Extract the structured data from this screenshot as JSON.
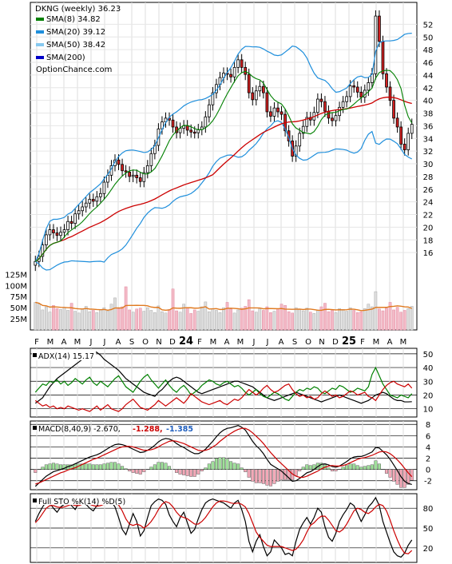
{
  "chart_data": [
    {
      "type": "candlestick",
      "panel": "price",
      "title": "DKNG (weekly) 36.23",
      "legend": [
        {
          "label": "SMA(8) 34.82",
          "color": "#008000"
        },
        {
          "label": "SMA(20) 39.12",
          "color": "#1f8fdc"
        },
        {
          "label": "SMA(50) 38.42",
          "color": "#87c9f0"
        },
        {
          "label": "SMA(200)",
          "color": "#0000c8"
        }
      ],
      "watermark": "OptionChance.com",
      "legend_position": "top-left",
      "price_ticks": [
        16,
        18,
        20,
        22,
        24,
        26,
        28,
        30,
        32,
        34,
        36,
        38,
        40,
        42,
        44,
        46,
        48,
        50,
        52
      ],
      "ylim": [
        13.7,
        53.5
      ],
      "volume_ticks": [
        "25M",
        "50M",
        "75M",
        "100M",
        "125M"
      ],
      "volume_tick_values": [
        25,
        50,
        75,
        100,
        125
      ],
      "volume_ylim": [
        0,
        140
      ],
      "x_labels": [
        "F",
        "M",
        "A",
        "M",
        "J",
        "J",
        "A",
        "S",
        "O",
        "N",
        "D",
        "24",
        "F",
        "M",
        "A",
        "M",
        "J",
        "J",
        "A",
        "S",
        "O",
        "N",
        "D",
        "25",
        "F",
        "M",
        "A",
        "M"
      ],
      "weekly_close": [
        14.6,
        15.4,
        17.2,
        18.8,
        19.6,
        19.1,
        18.7,
        19.2,
        19.6,
        20.9,
        20.6,
        22.1,
        22.6,
        23.2,
        23.8,
        24.4,
        24.1,
        24.8,
        25.3,
        27.1,
        28.2,
        29.7,
        30.6,
        29.9,
        28.9,
        28.7,
        28.0,
        28.2,
        27.8,
        27.2,
        28.6,
        29.7,
        31.6,
        32.9,
        35.5,
        36.6,
        37.2,
        36.9,
        35.8,
        34.9,
        35.6,
        36.0,
        35.3,
        35.0,
        34.9,
        35.4,
        35.8,
        37.4,
        39.3,
        41.2,
        42.5,
        43.6,
        44.3,
        44.1,
        43.7,
        45.2,
        46.4,
        45.2,
        44.1,
        41.2,
        40.1,
        41.5,
        42.2,
        41.2,
        38.2,
        37.5,
        38.8,
        38.2,
        37.8,
        35.2,
        33.6,
        31.2,
        32.8,
        34.8,
        35.9,
        37.3,
        36.9,
        38.1,
        40.2,
        39.8,
        38.3,
        37.2,
        36.8,
        37.6,
        38.9,
        39.8,
        40.6,
        42.3,
        42.1,
        41.3,
        40.5,
        41.6,
        42.8,
        44.2,
        53.3,
        49.3,
        44.2,
        42.1,
        40.0,
        37.2,
        35.8,
        33.1,
        32.2,
        34.8,
        36.23
      ],
      "weekly_volume": [
        62,
        58,
        45,
        52,
        40,
        55,
        48,
        46,
        50,
        44,
        60,
        42,
        38,
        47,
        53,
        41,
        44,
        39,
        46,
        50,
        43,
        58,
        72,
        48,
        52,
        97,
        45,
        40,
        47,
        49,
        42,
        50,
        44,
        39,
        54,
        41,
        38,
        46,
        92,
        43,
        40,
        58,
        49,
        37,
        45,
        42,
        52,
        63,
        41,
        48,
        44,
        39,
        50,
        62,
        47,
        38,
        45,
        49,
        53,
        68,
        43,
        40,
        48,
        44,
        52,
        39,
        42,
        47,
        58,
        55,
        41,
        38,
        50,
        46,
        43,
        49,
        40,
        37,
        45,
        52,
        60,
        41,
        44,
        39,
        48,
        46,
        42,
        50,
        44,
        39,
        41,
        48,
        58,
        52,
        86,
        47,
        43,
        49,
        62,
        45,
        51,
        40,
        44,
        48,
        53
      ],
      "series": [
        {
          "name": "SMA(8) 34.82",
          "color": "#008000"
        },
        {
          "name": "SMA(20) 39.12",
          "color": "#1f8fdc"
        },
        {
          "name": "SMA(50) 38.42",
          "color": "#87c9f0"
        }
      ]
    },
    {
      "type": "line",
      "panel": "adx",
      "label": "ADX(14) 15.17",
      "ticks": [
        10,
        20,
        30,
        40,
        50
      ],
      "ylim": [
        4,
        54
      ],
      "series": [
        {
          "key": "adx",
          "color": "#000000",
          "values": [
            14,
            16,
            18,
            22,
            26,
            29,
            32,
            34,
            36,
            38,
            40,
            42,
            44,
            46,
            47,
            50,
            52,
            51,
            49,
            46,
            44,
            42,
            40,
            38,
            35,
            32,
            30,
            28,
            26,
            24,
            22,
            21,
            20,
            19,
            22,
            24,
            27,
            30,
            32,
            33,
            32,
            30,
            28,
            26,
            24,
            22,
            21,
            22,
            23,
            24,
            25,
            26,
            27,
            28,
            29,
            30,
            30,
            29,
            28,
            27,
            26,
            24,
            22,
            20,
            18,
            17,
            16,
            17,
            18,
            19,
            20,
            21,
            22,
            21,
            20,
            19,
            18,
            17,
            16,
            15,
            16,
            17,
            18,
            19,
            20,
            19,
            18,
            17,
            16,
            15,
            14,
            15,
            16,
            18,
            20,
            21,
            22,
            21,
            19,
            17,
            16,
            16,
            15,
            15,
            15.17
          ]
        },
        {
          "key": "plus-di",
          "color": "#008000",
          "values": [
            22,
            25,
            28,
            27,
            30,
            29,
            31,
            28,
            30,
            27,
            29,
            32,
            30,
            28,
            31,
            33,
            29,
            27,
            30,
            28,
            26,
            29,
            32,
            34,
            30,
            26,
            24,
            22,
            26,
            30,
            33,
            35,
            31,
            28,
            25,
            28,
            31,
            27,
            24,
            22,
            25,
            27,
            24,
            20,
            22,
            24,
            27,
            29,
            31,
            30,
            28,
            27,
            29,
            30,
            28,
            26,
            27,
            25,
            22,
            20,
            22,
            24,
            21,
            19,
            18,
            20,
            22,
            21,
            19,
            17,
            16,
            19,
            22,
            24,
            23,
            25,
            24,
            26,
            25,
            22,
            21,
            23,
            25,
            24,
            27,
            26,
            24,
            22,
            23,
            25,
            24,
            23,
            26,
            35,
            40,
            34,
            28,
            24,
            20,
            19,
            18,
            20,
            19,
            18,
            21
          ]
        },
        {
          "key": "minus-di",
          "color": "#cc0000",
          "values": [
            16,
            14,
            12,
            13,
            11,
            12,
            10,
            11,
            10,
            12,
            11,
            10,
            9,
            10,
            9,
            8,
            10,
            12,
            9,
            11,
            13,
            10,
            9,
            8,
            10,
            13,
            15,
            17,
            14,
            11,
            10,
            9,
            11,
            13,
            16,
            14,
            12,
            14,
            16,
            18,
            16,
            14,
            17,
            21,
            19,
            17,
            15,
            14,
            13,
            14,
            15,
            16,
            14,
            13,
            15,
            17,
            16,
            18,
            21,
            24,
            22,
            20,
            22,
            25,
            27,
            24,
            22,
            23,
            25,
            27,
            28,
            24,
            21,
            19,
            20,
            18,
            19,
            17,
            18,
            21,
            23,
            21,
            19,
            20,
            18,
            19,
            21,
            23,
            22,
            20,
            21,
            22,
            19,
            18,
            16,
            20,
            24,
            27,
            29,
            30,
            28,
            27,
            26,
            28,
            25
          ]
        }
      ]
    },
    {
      "type": "line",
      "panel": "macd",
      "label": "MACD(8,40,9) -2.670,",
      "label_values": [
        {
          "text": "-1.288,",
          "color": "#cc0000"
        },
        {
          "text": "-1.385",
          "color": "#1f5fbf"
        }
      ],
      "ticks": [
        -2,
        0,
        2,
        4,
        6,
        8
      ],
      "ylim": [
        -3.6,
        8.6
      ],
      "series": [
        {
          "key": "macd",
          "color": "#000000",
          "values": [
            -3.0,
            -2.4,
            -1.8,
            -1.2,
            -0.8,
            -0.4,
            -0.2,
            0.0,
            0.2,
            0.5,
            0.7,
            1.0,
            1.3,
            1.6,
            1.9,
            2.2,
            2.4,
            2.6,
            2.9,
            3.3,
            3.7,
            4.1,
            4.4,
            4.5,
            4.4,
            4.2,
            3.9,
            3.6,
            3.3,
            3.0,
            3.1,
            3.4,
            3.8,
            4.3,
            4.9,
            5.3,
            5.5,
            5.4,
            5.1,
            4.6,
            4.2,
            3.9,
            3.5,
            3.1,
            2.8,
            2.8,
            3.1,
            3.6,
            4.3,
            5.0,
            5.8,
            6.5,
            7.0,
            7.3,
            7.4,
            7.6,
            7.8,
            7.5,
            7.0,
            6.0,
            5.0,
            4.2,
            3.6,
            2.8,
            1.8,
            0.9,
            0.5,
            0.1,
            -0.3,
            -0.9,
            -1.5,
            -2.1,
            -2.0,
            -1.6,
            -1.1,
            -0.6,
            -0.4,
            0.0,
            0.5,
            0.9,
            1.0,
            0.8,
            0.5,
            0.4,
            0.6,
            1.0,
            1.4,
            1.9,
            2.2,
            2.3,
            2.3,
            2.5,
            2.8,
            3.1,
            3.9,
            3.8,
            3.2,
            2.6,
            1.8,
            0.8,
            -0.2,
            -1.3,
            -2.1,
            -2.5,
            -2.67
          ]
        },
        {
          "key": "signal",
          "color": "#cc0000",
          "values": [
            -2.6,
            -2.4,
            -2.1,
            -1.8,
            -1.5,
            -1.2,
            -0.9,
            -0.6,
            -0.4,
            -0.1,
            0.1,
            0.3,
            0.6,
            0.9,
            1.2,
            1.5,
            1.8,
            2.0,
            2.3,
            2.6,
            2.9,
            3.2,
            3.5,
            3.8,
            4.0,
            4.1,
            4.1,
            4.0,
            3.8,
            3.6,
            3.4,
            3.4,
            3.5,
            3.7,
            4.0,
            4.4,
            4.7,
            5.0,
            5.1,
            5.0,
            4.8,
            4.6,
            4.3,
            4.0,
            3.7,
            3.4,
            3.3,
            3.4,
            3.6,
            4.0,
            4.4,
            5.0,
            5.5,
            6.0,
            6.4,
            6.8,
            7.1,
            7.3,
            7.3,
            7.0,
            6.5,
            5.9,
            5.3,
            4.6,
            3.8,
            3.0,
            2.3,
            1.6,
            1.0,
            0.4,
            -0.2,
            -0.8,
            -1.2,
            -1.4,
            -1.4,
            -1.2,
            -0.9,
            -0.6,
            -0.3,
            0.1,
            0.4,
            0.6,
            0.7,
            0.6,
            0.6,
            0.7,
            0.9,
            1.2,
            1.5,
            1.8,
            2.0,
            2.1,
            2.3,
            2.5,
            2.8,
            3.1,
            3.2,
            3.1,
            2.8,
            2.3,
            1.7,
            1.0,
            0.2,
            -0.6,
            -1.29
          ]
        }
      ]
    },
    {
      "type": "line",
      "panel": "stochastic",
      "label": "Full STO %K(14) %D(5)",
      "ticks": [
        20,
        50,
        80
      ],
      "ylim": [
        -2,
        102
      ],
      "series": [
        {
          "key": "k",
          "color": "#000000",
          "values": [
            60,
            72,
            82,
            90,
            88,
            80,
            74,
            82,
            86,
            90,
            84,
            78,
            88,
            92,
            86,
            80,
            76,
            84,
            88,
            92,
            94,
            90,
            82,
            66,
            48,
            40,
            56,
            72,
            60,
            38,
            46,
            66,
            84,
            90,
            94,
            92,
            86,
            70,
            60,
            52,
            66,
            74,
            58,
            42,
            48,
            64,
            78,
            88,
            92,
            94,
            92,
            90,
            88,
            84,
            80,
            88,
            92,
            78,
            60,
            30,
            14,
            30,
            40,
            22,
            8,
            14,
            32,
            26,
            20,
            10,
            12,
            8,
            30,
            48,
            58,
            66,
            56,
            66,
            80,
            74,
            52,
            36,
            30,
            42,
            60,
            70,
            78,
            88,
            84,
            72,
            60,
            70,
            82,
            88,
            96,
            84,
            60,
            44,
            28,
            14,
            8,
            6,
            12,
            24,
            32
          ]
        },
        {
          "key": "d",
          "color": "#cc0000",
          "values": [
            58,
            64,
            72,
            80,
            84,
            84,
            82,
            81,
            82,
            84,
            86,
            84,
            84,
            86,
            88,
            86,
            84,
            83,
            84,
            86,
            88,
            90,
            90,
            85,
            76,
            64,
            56,
            54,
            56,
            54,
            50,
            54,
            60,
            68,
            78,
            86,
            90,
            88,
            82,
            74,
            68,
            66,
            64,
            60,
            56,
            56,
            60,
            66,
            74,
            82,
            88,
            91,
            91,
            90,
            88,
            87,
            88,
            86,
            82,
            72,
            58,
            44,
            36,
            30,
            24,
            22,
            22,
            22,
            22,
            20,
            18,
            16,
            18,
            24,
            32,
            44,
            54,
            58,
            64,
            68,
            68,
            62,
            54,
            46,
            44,
            48,
            56,
            66,
            76,
            80,
            78,
            74,
            72,
            76,
            82,
            86,
            84,
            76,
            62,
            46,
            32,
            20,
            12,
            11,
            16
          ]
        }
      ]
    }
  ]
}
